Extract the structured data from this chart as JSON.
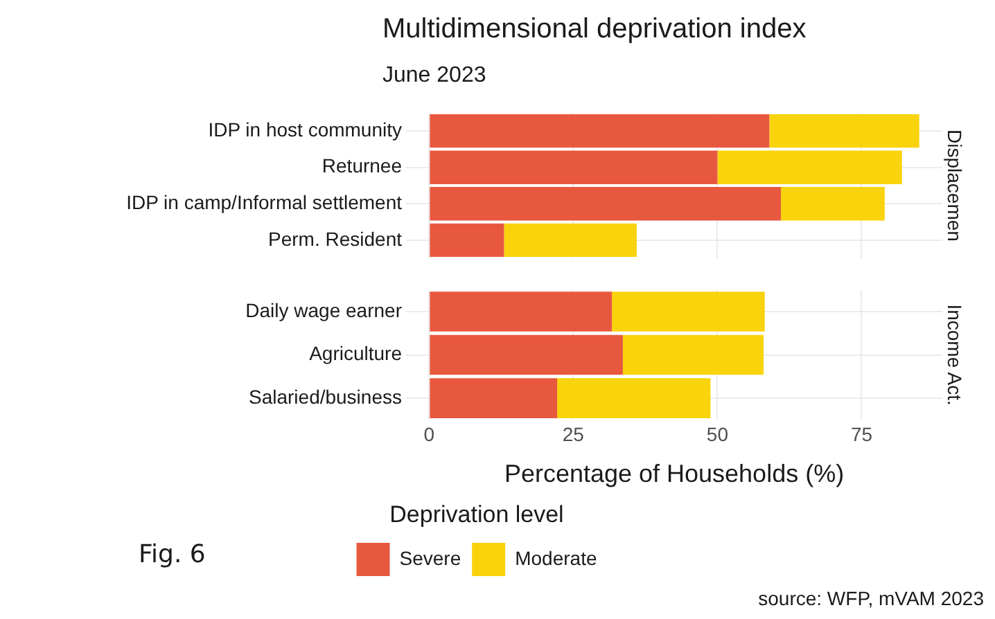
{
  "chart_data": [
    {
      "type": "bar",
      "orientation": "horizontal",
      "stacked": true,
      "title": "Multidimensional deprivation index",
      "subtitle": "June 2023",
      "categories": [
        "IDP in host community",
        "Returnee",
        "IDP in camp/Informal settlement",
        "Perm. Resident"
      ],
      "series": [
        {
          "color": "#e8583f",
          "values": [
            59,
            50,
            61,
            13
          ]
        },
        {
          "color": "#f9d30b",
          "values": [
            26,
            32,
            18,
            23
          ]
        }
      ],
      "xlim": [
        -4,
        89
      ],
      "xticks": [
        0,
        25,
        50,
        75
      ],
      "tick_labels": "y",
      "grid": true,
      "legend": false,
      "annotations": [
        "Displacemen"
      ]
    },
    {
      "type": "bar",
      "orientation": "horizontal",
      "stacked": true,
      "xlabel": "Percentage of Households (%)",
      "legend_title": "Deprivation level",
      "categories": [
        "Daily wage earner",
        "Agriculture",
        "Salaried/business"
      ],
      "series": [
        {
          "name": "Severe",
          "color": "#e8583f",
          "values": [
            31.7,
            33.6,
            22.2
          ]
        },
        {
          "name": "Moderate",
          "color": "#f9d30b",
          "values": [
            26.5,
            24.4,
            26.6
          ]
        }
      ],
      "xlim": [
        -4,
        89
      ],
      "xticks": [
        0,
        25,
        50,
        75
      ],
      "grid": true,
      "legend": "bottom",
      "annotations": [
        "Income Act.",
        "source: WFP, mVAM 2023",
        "Fig. 6"
      ]
    }
  ]
}
